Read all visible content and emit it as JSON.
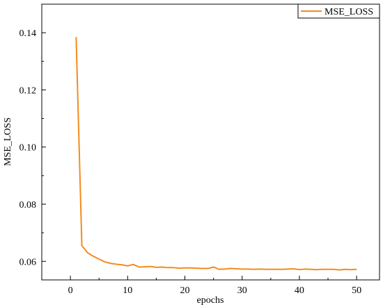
{
  "chart_data": {
    "type": "line",
    "title": "",
    "xlabel": "epochs",
    "ylabel": "MSE_LOSS",
    "xlim": [
      -5,
      54
    ],
    "ylim": [
      0.0535,
      0.15
    ],
    "xticks": [
      0,
      10,
      20,
      30,
      40,
      50
    ],
    "yticks": [
      0.06,
      0.08,
      0.1,
      0.12,
      0.14
    ],
    "ytick_labels": [
      "0.06",
      "0.08",
      "0.10",
      "0.12",
      "0.14"
    ],
    "grid": false,
    "legend": {
      "position": "top-right"
    },
    "series": [
      {
        "name": "MSE_LOSS",
        "color": "#F28C1C",
        "x": [
          1,
          2,
          3,
          4,
          5,
          6,
          7,
          8,
          9,
          10,
          11,
          12,
          13,
          14,
          15,
          16,
          17,
          18,
          19,
          20,
          21,
          22,
          23,
          24,
          25,
          26,
          27,
          28,
          29,
          30,
          31,
          32,
          33,
          34,
          35,
          36,
          37,
          38,
          39,
          40,
          41,
          42,
          43,
          44,
          45,
          46,
          47,
          48,
          49,
          50
        ],
        "y": [
          0.1385,
          0.0655,
          0.063,
          0.0618,
          0.0608,
          0.0598,
          0.0593,
          0.059,
          0.0588,
          0.0584,
          0.0589,
          0.058,
          0.0581,
          0.0582,
          0.0579,
          0.058,
          0.0578,
          0.0578,
          0.0576,
          0.0577,
          0.0577,
          0.0576,
          0.0575,
          0.0575,
          0.058,
          0.0572,
          0.0573,
          0.0575,
          0.0574,
          0.0573,
          0.0573,
          0.0572,
          0.0573,
          0.0572,
          0.0572,
          0.0572,
          0.0572,
          0.0573,
          0.0574,
          0.0571,
          0.0573,
          0.0572,
          0.0571,
          0.0572,
          0.0572,
          0.0572,
          0.057,
          0.0572,
          0.0571,
          0.0572
        ]
      }
    ]
  }
}
